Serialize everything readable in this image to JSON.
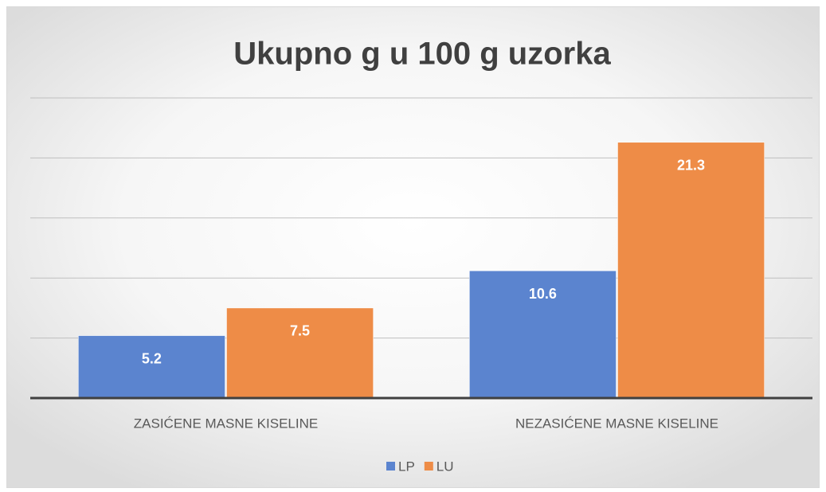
{
  "chart_data": {
    "type": "bar",
    "title": "Ukupno g u 100 g uzorka",
    "categories": [
      "ZASIĆENE MASNE KISELINE",
      "NEZASIĆENE MASNE KISELINE"
    ],
    "series": [
      {
        "name": "LP",
        "color": "#5b84cf",
        "values": [
          5.2,
          10.6
        ]
      },
      {
        "name": "LU",
        "color": "#ee8c47",
        "values": [
          7.5,
          21.3
        ]
      }
    ],
    "ylim": [
      0,
      25
    ],
    "yticks": [
      0,
      5,
      10,
      15,
      20,
      25
    ],
    "grid": true,
    "legend": "bottom"
  }
}
